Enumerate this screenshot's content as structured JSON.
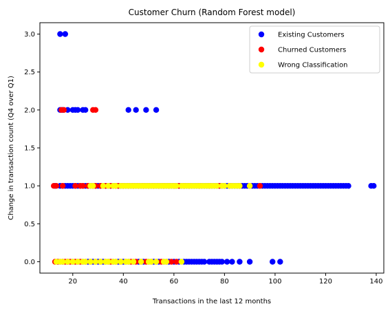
{
  "chart_data": {
    "type": "scatter",
    "title": "Customer Churn (Random Forest model)",
    "xlabel": "Transactions in the last 12 months",
    "ylabel": "Change in transaction count (Q4 over Q1)",
    "xlim": [
      7,
      143
    ],
    "ylim": [
      -0.15,
      3.15
    ],
    "xticks": [
      20,
      40,
      60,
      80,
      100,
      120,
      140
    ],
    "yticks": [
      0.0,
      0.5,
      1.0,
      1.5,
      2.0,
      2.5,
      3.0
    ],
    "xtick_labels": [
      "20",
      "40",
      "60",
      "80",
      "100",
      "120",
      "140"
    ],
    "ytick_labels": [
      "0.0",
      "0.5",
      "1.0",
      "1.5",
      "2.0",
      "2.5",
      "3.0"
    ],
    "legend_position": "upper-right",
    "grid": false,
    "series": [
      {
        "name": "Existing Customers",
        "color": "#0000ff",
        "points": [
          [
            15,
            3
          ],
          [
            17,
            3
          ],
          [
            15,
            2
          ],
          [
            16,
            2
          ],
          [
            18,
            2
          ],
          [
            20,
            2
          ],
          [
            21,
            2
          ],
          [
            22,
            2
          ],
          [
            24,
            2
          ],
          [
            25,
            2
          ],
          [
            42,
            2
          ],
          [
            45,
            2
          ],
          [
            49,
            2
          ],
          [
            53,
            2
          ],
          [
            13,
            1
          ],
          [
            15,
            1
          ],
          [
            16,
            1
          ],
          [
            17,
            1
          ],
          [
            18,
            1
          ],
          [
            19,
            1
          ],
          [
            20,
            1
          ],
          [
            21,
            1
          ],
          [
            22,
            1
          ],
          [
            23,
            1
          ],
          [
            24,
            1
          ],
          [
            25,
            1
          ],
          [
            26,
            1
          ],
          [
            27,
            1
          ],
          [
            28,
            1
          ],
          [
            29,
            1
          ],
          [
            30,
            1
          ],
          [
            31,
            1
          ],
          [
            32,
            1
          ],
          [
            33,
            1
          ],
          [
            34,
            1
          ],
          [
            35,
            1
          ],
          [
            36,
            1
          ],
          [
            37,
            1
          ],
          [
            38,
            1
          ],
          [
            39,
            1
          ],
          [
            40,
            1
          ],
          [
            41,
            1
          ],
          [
            42,
            1
          ],
          [
            43,
            1
          ],
          [
            44,
            1
          ],
          [
            45,
            1
          ],
          [
            46,
            1
          ],
          [
            47,
            1
          ],
          [
            48,
            1
          ],
          [
            49,
            1
          ],
          [
            50,
            1
          ],
          [
            51,
            1
          ],
          [
            52,
            1
          ],
          [
            53,
            1
          ],
          [
            54,
            1
          ],
          [
            55,
            1
          ],
          [
            56,
            1
          ],
          [
            57,
            1
          ],
          [
            58,
            1
          ],
          [
            59,
            1
          ],
          [
            60,
            1
          ],
          [
            61,
            1
          ],
          [
            62,
            1
          ],
          [
            63,
            1
          ],
          [
            64,
            1
          ],
          [
            65,
            1
          ],
          [
            66,
            1
          ],
          [
            67,
            1
          ],
          [
            68,
            1
          ],
          [
            69,
            1
          ],
          [
            70,
            1
          ],
          [
            71,
            1
          ],
          [
            72,
            1
          ],
          [
            73,
            1
          ],
          [
            74,
            1
          ],
          [
            75,
            1
          ],
          [
            76,
            1
          ],
          [
            77,
            1
          ],
          [
            78,
            1
          ],
          [
            79,
            1
          ],
          [
            80,
            1
          ],
          [
            81,
            1
          ],
          [
            82,
            1
          ],
          [
            83,
            1
          ],
          [
            84,
            1
          ],
          [
            85,
            1
          ],
          [
            86,
            1
          ],
          [
            87,
            1
          ],
          [
            88,
            1
          ],
          [
            89,
            1
          ],
          [
            90,
            1
          ],
          [
            91,
            1
          ],
          [
            92,
            1
          ],
          [
            93,
            1
          ],
          [
            94,
            1
          ],
          [
            95,
            1
          ],
          [
            96,
            1
          ],
          [
            97,
            1
          ],
          [
            98,
            1
          ],
          [
            99,
            1
          ],
          [
            100,
            1
          ],
          [
            101,
            1
          ],
          [
            102,
            1
          ],
          [
            103,
            1
          ],
          [
            104,
            1
          ],
          [
            105,
            1
          ],
          [
            106,
            1
          ],
          [
            107,
            1
          ],
          [
            108,
            1
          ],
          [
            109,
            1
          ],
          [
            110,
            1
          ],
          [
            111,
            1
          ],
          [
            112,
            1
          ],
          [
            113,
            1
          ],
          [
            114,
            1
          ],
          [
            115,
            1
          ],
          [
            116,
            1
          ],
          [
            117,
            1
          ],
          [
            118,
            1
          ],
          [
            119,
            1
          ],
          [
            120,
            1
          ],
          [
            121,
            1
          ],
          [
            122,
            1
          ],
          [
            123,
            1
          ],
          [
            124,
            1
          ],
          [
            125,
            1
          ],
          [
            126,
            1
          ],
          [
            127,
            1
          ],
          [
            128,
            1
          ],
          [
            129,
            1
          ],
          [
            138,
            1
          ],
          [
            139,
            1
          ],
          [
            14,
            0
          ],
          [
            16,
            0
          ],
          [
            18,
            0
          ],
          [
            20,
            0
          ],
          [
            22,
            0
          ],
          [
            24,
            0
          ],
          [
            26,
            0
          ],
          [
            28,
            0
          ],
          [
            30,
            0
          ],
          [
            32,
            0
          ],
          [
            34,
            0
          ],
          [
            36,
            0
          ],
          [
            38,
            0
          ],
          [
            40,
            0
          ],
          [
            42,
            0
          ],
          [
            44,
            0
          ],
          [
            46,
            0
          ],
          [
            48,
            0
          ],
          [
            50,
            0
          ],
          [
            52,
            0
          ],
          [
            54,
            0
          ],
          [
            56,
            0
          ],
          [
            58,
            0
          ],
          [
            60,
            0
          ],
          [
            62,
            0
          ],
          [
            64,
            0
          ],
          [
            65,
            0
          ],
          [
            66,
            0
          ],
          [
            67,
            0
          ],
          [
            68,
            0
          ],
          [
            69,
            0
          ],
          [
            70,
            0
          ],
          [
            71,
            0
          ],
          [
            72,
            0
          ],
          [
            74,
            0
          ],
          [
            75,
            0
          ],
          [
            76,
            0
          ],
          [
            77,
            0
          ],
          [
            78,
            0
          ],
          [
            79,
            0
          ],
          [
            81,
            0
          ],
          [
            83,
            0
          ],
          [
            86,
            0
          ],
          [
            90,
            0
          ],
          [
            99,
            0
          ],
          [
            102,
            0
          ]
        ]
      },
      {
        "name": "Churned Customers",
        "color": "#ff0000",
        "points": [
          [
            15.5,
            2
          ],
          [
            16.5,
            2
          ],
          [
            28,
            2
          ],
          [
            29,
            2
          ],
          [
            12.5,
            1
          ],
          [
            13.5,
            1
          ],
          [
            16,
            1
          ],
          [
            21,
            1
          ],
          [
            23,
            1
          ],
          [
            24,
            1
          ],
          [
            26,
            1
          ],
          [
            28,
            1
          ],
          [
            29,
            1
          ],
          [
            31,
            1
          ],
          [
            33,
            1
          ],
          [
            35,
            1
          ],
          [
            37,
            1
          ],
          [
            38,
            1
          ],
          [
            40,
            1
          ],
          [
            42,
            1
          ],
          [
            44,
            1
          ],
          [
            46,
            1
          ],
          [
            48,
            1
          ],
          [
            50,
            1
          ],
          [
            52,
            1
          ],
          [
            54,
            1
          ],
          [
            56,
            1
          ],
          [
            58,
            1
          ],
          [
            60,
            1
          ],
          [
            62,
            1
          ],
          [
            64,
            1
          ],
          [
            66,
            1
          ],
          [
            70,
            1
          ],
          [
            74,
            1
          ],
          [
            78,
            1
          ],
          [
            82,
            1
          ],
          [
            86,
            1
          ],
          [
            90,
            1
          ],
          [
            94,
            1
          ],
          [
            13,
            0
          ],
          [
            14,
            0
          ],
          [
            15,
            0
          ],
          [
            16,
            0
          ],
          [
            17,
            0
          ],
          [
            18,
            0
          ],
          [
            19,
            0
          ],
          [
            21,
            0
          ],
          [
            23,
            0
          ],
          [
            25,
            0
          ],
          [
            27,
            0
          ],
          [
            29,
            0
          ],
          [
            31,
            0
          ],
          [
            33,
            0
          ],
          [
            35,
            0
          ],
          [
            37,
            0
          ],
          [
            39,
            0
          ],
          [
            41,
            0
          ],
          [
            43,
            0
          ],
          [
            45,
            0
          ],
          [
            47,
            0
          ],
          [
            49,
            0
          ],
          [
            51,
            0
          ],
          [
            53,
            0
          ],
          [
            55,
            0
          ],
          [
            57,
            0
          ],
          [
            59,
            0
          ],
          [
            61,
            0
          ]
        ]
      },
      {
        "name": "Wrong Classification",
        "color": "#ffff00",
        "points": [
          [
            27,
            1
          ],
          [
            28,
            1
          ],
          [
            32,
            1
          ],
          [
            34,
            1
          ],
          [
            36,
            1
          ],
          [
            37,
            1
          ],
          [
            39,
            1
          ],
          [
            40,
            1
          ],
          [
            41,
            1
          ],
          [
            42,
            1
          ],
          [
            43,
            1
          ],
          [
            44,
            1
          ],
          [
            45,
            1
          ],
          [
            46,
            1
          ],
          [
            47,
            1
          ],
          [
            48,
            1
          ],
          [
            49,
            1
          ],
          [
            50,
            1
          ],
          [
            51,
            1
          ],
          [
            52,
            1
          ],
          [
            53,
            1
          ],
          [
            54,
            1
          ],
          [
            55,
            1
          ],
          [
            56,
            1
          ],
          [
            57,
            1
          ],
          [
            58,
            1
          ],
          [
            59,
            1
          ],
          [
            60,
            1
          ],
          [
            61,
            1
          ],
          [
            63,
            1
          ],
          [
            64,
            1
          ],
          [
            65,
            1
          ],
          [
            66,
            1
          ],
          [
            67,
            1
          ],
          [
            68,
            1
          ],
          [
            69,
            1
          ],
          [
            70,
            1
          ],
          [
            71,
            1
          ],
          [
            72,
            1
          ],
          [
            73,
            1
          ],
          [
            74,
            1
          ],
          [
            75,
            1
          ],
          [
            76,
            1
          ],
          [
            77,
            1
          ],
          [
            79,
            1
          ],
          [
            80,
            1
          ],
          [
            82,
            1
          ],
          [
            83,
            1
          ],
          [
            84,
            1
          ],
          [
            85,
            1
          ],
          [
            86,
            1
          ],
          [
            90,
            1
          ],
          [
            13.5,
            0
          ],
          [
            15,
            0
          ],
          [
            16,
            0
          ],
          [
            18,
            0
          ],
          [
            20,
            0
          ],
          [
            22,
            0
          ],
          [
            24,
            0
          ],
          [
            25,
            0
          ],
          [
            27,
            0
          ],
          [
            29,
            0
          ],
          [
            31,
            0
          ],
          [
            33,
            0
          ],
          [
            34,
            0
          ],
          [
            36,
            0
          ],
          [
            37,
            0
          ],
          [
            39,
            0
          ],
          [
            41,
            0
          ],
          [
            42,
            0
          ],
          [
            44,
            0
          ],
          [
            47,
            0
          ],
          [
            50,
            0
          ],
          [
            51,
            0
          ],
          [
            53,
            0
          ],
          [
            56,
            0
          ],
          [
            57,
            0
          ],
          [
            63,
            0
          ]
        ]
      }
    ]
  }
}
